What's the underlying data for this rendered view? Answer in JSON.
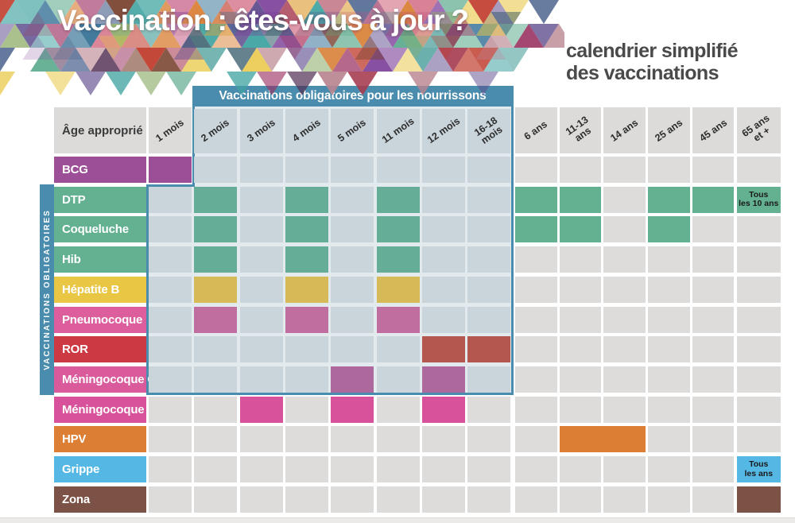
{
  "page": {
    "title": "Vaccination : êtes-vous à jour ?",
    "subtitle": "calendrier simplifié\ndes vaccinations"
  },
  "banner": {
    "label": "Vaccinations obligatoires pour les nourrissons"
  },
  "sidebar": {
    "label": "VACCINATIONS OBLIGATOIRES"
  },
  "table": {
    "age_header": "Âge approprié",
    "columns": [
      {
        "id": "1m",
        "label": "1 mois"
      },
      {
        "id": "2m",
        "label": "2 mois"
      },
      {
        "id": "3m",
        "label": "3 mois"
      },
      {
        "id": "4m",
        "label": "4 mois"
      },
      {
        "id": "5m",
        "label": "5 mois"
      },
      {
        "id": "11m",
        "label": "11 mois"
      },
      {
        "id": "12m",
        "label": "12 mois"
      },
      {
        "id": "16-18m",
        "label": "16-18\nmois"
      },
      {
        "id": "6a",
        "label": "6 ans"
      },
      {
        "id": "11-13a",
        "label": "11-13\nans"
      },
      {
        "id": "14a",
        "label": "14 ans"
      },
      {
        "id": "25a",
        "label": "25 ans"
      },
      {
        "id": "45a",
        "label": "45 ans"
      },
      {
        "id": "65a",
        "label": "65 ans\net +"
      }
    ],
    "rows": [
      {
        "id": "bcg",
        "label": "BCG",
        "color": "#9c4e96",
        "region_color": "#9c4e96",
        "cells": [
          "1m"
        ],
        "notes": {}
      },
      {
        "id": "dtp",
        "label": "DTP",
        "color": "#63b191",
        "region_color": "#66ad98",
        "cells": [
          "2m",
          "4m",
          "11m",
          "6a",
          "11-13a",
          "25a",
          "45a",
          "65a"
        ],
        "notes": {
          "65a": "Tous\nles 10 ans"
        }
      },
      {
        "id": "coqueluche",
        "label": "Coqueluche",
        "color": "#63b191",
        "region_color": "#66ad98",
        "cells": [
          "2m",
          "4m",
          "11m",
          "6a",
          "11-13a",
          "25a"
        ],
        "notes": {}
      },
      {
        "id": "hib",
        "label": "Hib",
        "color": "#63b191",
        "region_color": "#66ad98",
        "cells": [
          "2m",
          "4m",
          "11m"
        ],
        "notes": {}
      },
      {
        "id": "hepatite-b",
        "label": "Hépatite B",
        "color": "#e9c643",
        "region_color": "#d6ba57",
        "cells": [
          "2m",
          "4m",
          "11m"
        ],
        "notes": {}
      },
      {
        "id": "pneumocoque",
        "label": "Pneumocoque",
        "color": "#dc5e9d",
        "region_color": "#c06da0",
        "cells": [
          "2m",
          "4m",
          "11m"
        ],
        "notes": {}
      },
      {
        "id": "ror",
        "label": "ROR",
        "color": "#cc3942",
        "region_color": "#b4574f",
        "cells": [
          "12m",
          "16-18m"
        ],
        "notes": {}
      },
      {
        "id": "meningocoque-c",
        "label": "Méningocoque C",
        "color": "#d95b9c",
        "region_color": "#ad689d",
        "cells": [
          "5m",
          "12m"
        ],
        "notes": {}
      },
      {
        "id": "meningocoque-b",
        "label": "Méningocoque B",
        "color": "#d7529a",
        "region_color": "#d7529a",
        "cells": [
          "3m",
          "5m",
          "12m"
        ],
        "notes": {}
      },
      {
        "id": "hpv",
        "label": "HPV",
        "color": "#dc7e33",
        "region_color": "#dc7e33",
        "cells": [
          {
            "col": "11-13a",
            "span": 2
          }
        ],
        "notes": {}
      },
      {
        "id": "grippe",
        "label": "Grippe",
        "color": "#55b7e4",
        "region_color": "#55b7e4",
        "cells": [
          "65a"
        ],
        "notes": {
          "65a": "Tous\nles ans"
        }
      },
      {
        "id": "zona",
        "label": "Zona",
        "color": "#7b5245",
        "region_color": "#7b5245",
        "cells": [
          "65a"
        ],
        "notes": {}
      }
    ]
  },
  "colors": {
    "teal": "#4a8cad",
    "cell_gray": "#dedcda",
    "header_gray": "#dcdbd9",
    "cell_region": "#c9d5db",
    "region_gap": "#e2eaee",
    "note_text": "#1a1a1a",
    "bottom_bar": "#ebeae8"
  },
  "chart_data": {
    "type": "table",
    "title": "Vaccination : êtes-vous à jour ?",
    "subtitle": "calendrier simplifié des vaccinations",
    "highlight_zone": "Vaccinations obligatoires pour les nourrissons (2 mois à 16-18 mois ; lignes DTP à Méningocoque C)",
    "side_zone": "VACCINATIONS OBLIGATOIRES (DTP, Coqueluche, Hib, Hépatite B, Pneumocoque, ROR, Méningocoque C)",
    "columns": [
      "1 mois",
      "2 mois",
      "3 mois",
      "4 mois",
      "5 mois",
      "11 mois",
      "12 mois",
      "16-18 mois",
      "6 ans",
      "11-13 ans",
      "14 ans",
      "25 ans",
      "45 ans",
      "65 ans et +"
    ],
    "rows": [
      {
        "vaccin": "BCG",
        "doses": [
          "1 mois"
        ]
      },
      {
        "vaccin": "DTP",
        "doses": [
          "2 mois",
          "4 mois",
          "11 mois",
          "6 ans",
          "11-13 ans",
          "25 ans",
          "45 ans",
          "65 ans et +"
        ],
        "note": "Tous les 10 ans (65 ans et +)"
      },
      {
        "vaccin": "Coqueluche",
        "doses": [
          "2 mois",
          "4 mois",
          "11 mois",
          "6 ans",
          "11-13 ans",
          "25 ans"
        ]
      },
      {
        "vaccin": "Hib",
        "doses": [
          "2 mois",
          "4 mois",
          "11 mois"
        ]
      },
      {
        "vaccin": "Hépatite B",
        "doses": [
          "2 mois",
          "4 mois",
          "11 mois"
        ]
      },
      {
        "vaccin": "Pneumocoque",
        "doses": [
          "2 mois",
          "4 mois",
          "11 mois"
        ]
      },
      {
        "vaccin": "ROR",
        "doses": [
          "12 mois",
          "16-18 mois"
        ]
      },
      {
        "vaccin": "Méningocoque C",
        "doses": [
          "5 mois",
          "12 mois"
        ]
      },
      {
        "vaccin": "Méningocoque B",
        "doses": [
          "3 mois",
          "5 mois",
          "12 mois"
        ]
      },
      {
        "vaccin": "HPV",
        "doses": [
          "11-13 ans",
          "14 ans"
        ]
      },
      {
        "vaccin": "Grippe",
        "doses": [
          "65 ans et +"
        ],
        "note": "Tous les ans"
      },
      {
        "vaccin": "Zona",
        "doses": [
          "65 ans et +"
        ]
      }
    ]
  }
}
